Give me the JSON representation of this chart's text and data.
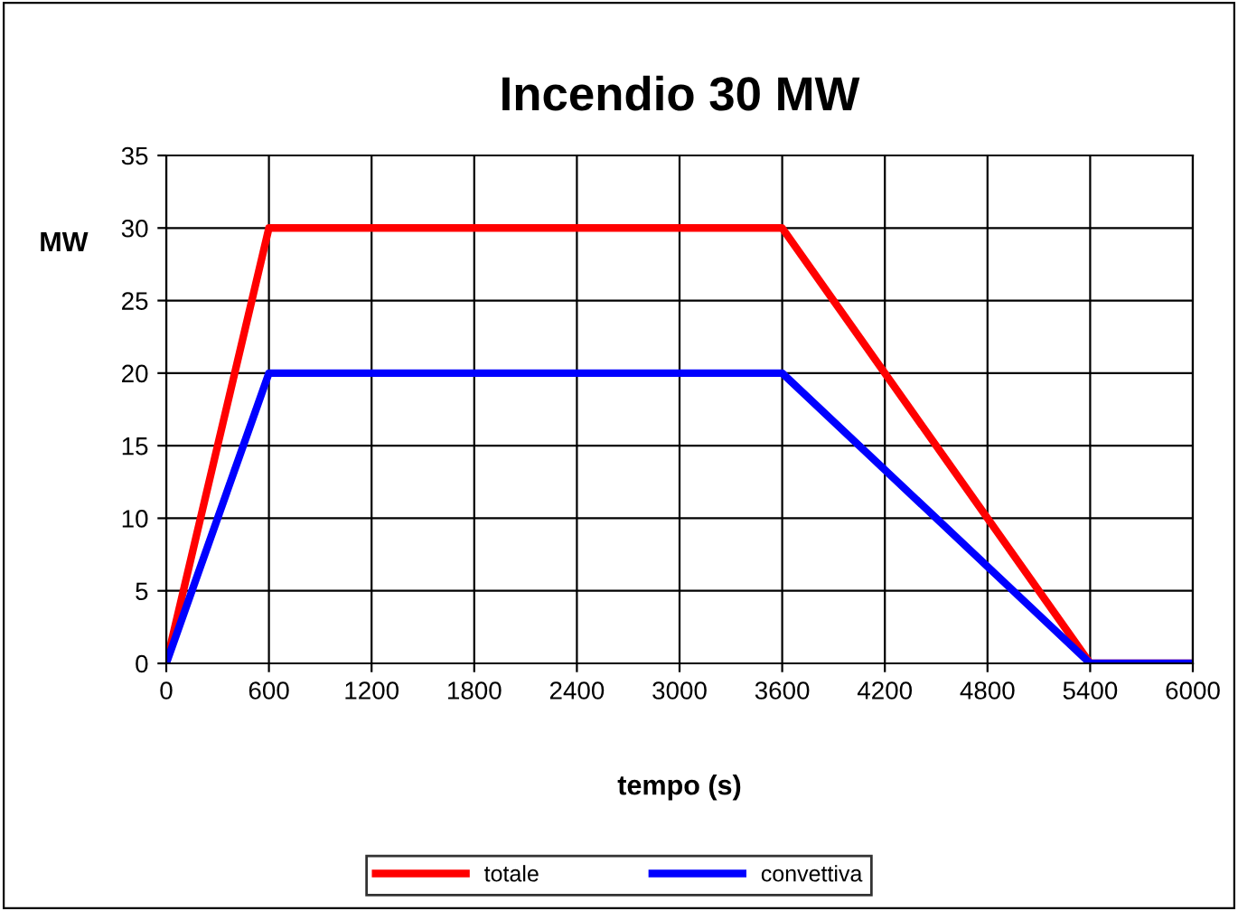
{
  "chart_data": {
    "type": "line",
    "title": "Incendio 30 MW",
    "xlabel": "tempo (s)",
    "ylabel": "MW",
    "x": [
      0,
      600,
      3600,
      5400,
      6000
    ],
    "series": [
      {
        "name": "totale",
        "color": "#ff0000",
        "values": [
          0,
          30,
          30,
          0,
          0
        ]
      },
      {
        "name": "convettiva",
        "color": "#0000ff",
        "values": [
          0,
          20,
          20,
          0,
          0
        ]
      }
    ],
    "xlim": [
      0,
      6000
    ],
    "xticks": [
      0,
      600,
      1200,
      1800,
      2400,
      3000,
      3600,
      4200,
      4800,
      5400,
      6000
    ],
    "ylim": [
      0,
      35
    ],
    "yticks": [
      0,
      5,
      10,
      15,
      20,
      25,
      30,
      35
    ],
    "grid": true,
    "legend": "bottom",
    "marker": "none",
    "line_style": "solid"
  }
}
